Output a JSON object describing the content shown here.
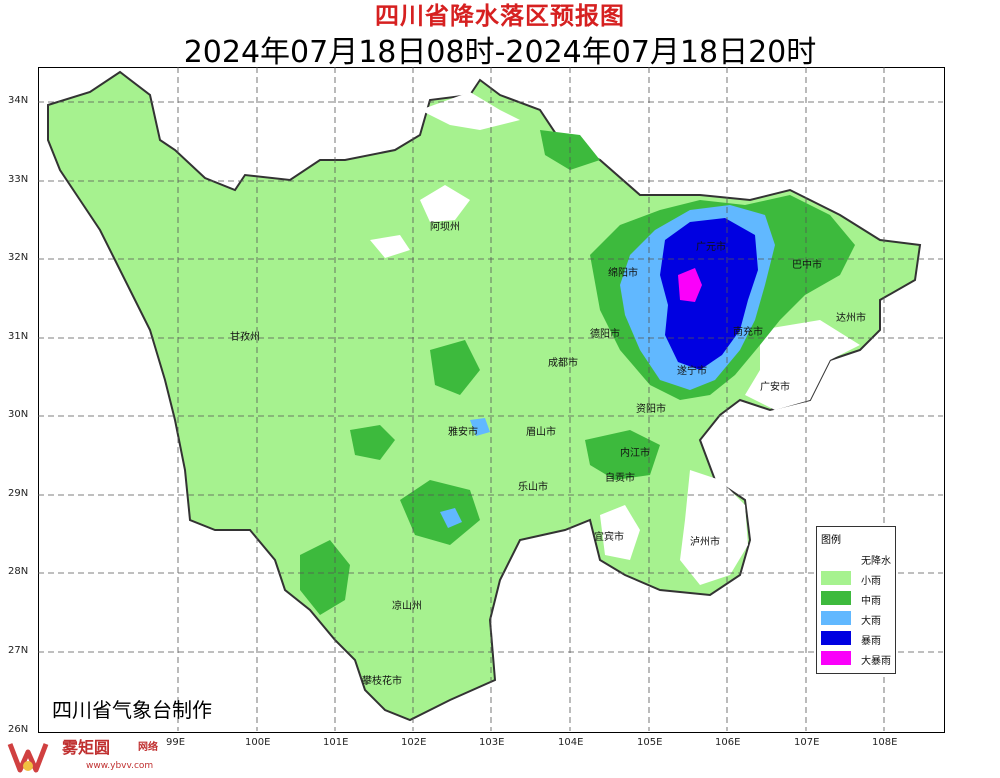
{
  "title": "四川省降水落区预报图",
  "time_range": "2024年07月18日08时-2024年07月18日20时",
  "credit": "四川省气象台制作",
  "watermark": {
    "name": "雾矩圆",
    "sub": "网络",
    "site": "www.ybvv.com"
  },
  "lat_labels": [
    "34N",
    "33N",
    "32N",
    "31N",
    "30N",
    "29N",
    "28N",
    "27N",
    "26N"
  ],
  "lon_labels": [
    "99E",
    "100E",
    "101E",
    "102E",
    "103E",
    "104E",
    "105E",
    "106E",
    "107E",
    "108E"
  ],
  "cities": [
    "阿坝州",
    "甘孜州",
    "绵阳市",
    "广元市",
    "巴中市",
    "达州市",
    "德阳市",
    "成都市",
    "南充市",
    "遂宁市",
    "广安市",
    "雅安市",
    "眉山市",
    "资阳市",
    "乐山市",
    "内江市",
    "自贡市",
    "宜宾市",
    "泸州市",
    "凉山州",
    "攀枝花市"
  ],
  "legend": {
    "title": "图例",
    "items": [
      {
        "label": "无降水",
        "color": "#ffffff"
      },
      {
        "label": "小雨",
        "color": "#a6f28f"
      },
      {
        "label": "中雨",
        "color": "#3dba3d"
      },
      {
        "label": "大雨",
        "color": "#61b8ff"
      },
      {
        "label": "暴雨",
        "color": "#0000e1"
      },
      {
        "label": "大暴雨",
        "color": "#fa00fa"
      }
    ]
  }
}
